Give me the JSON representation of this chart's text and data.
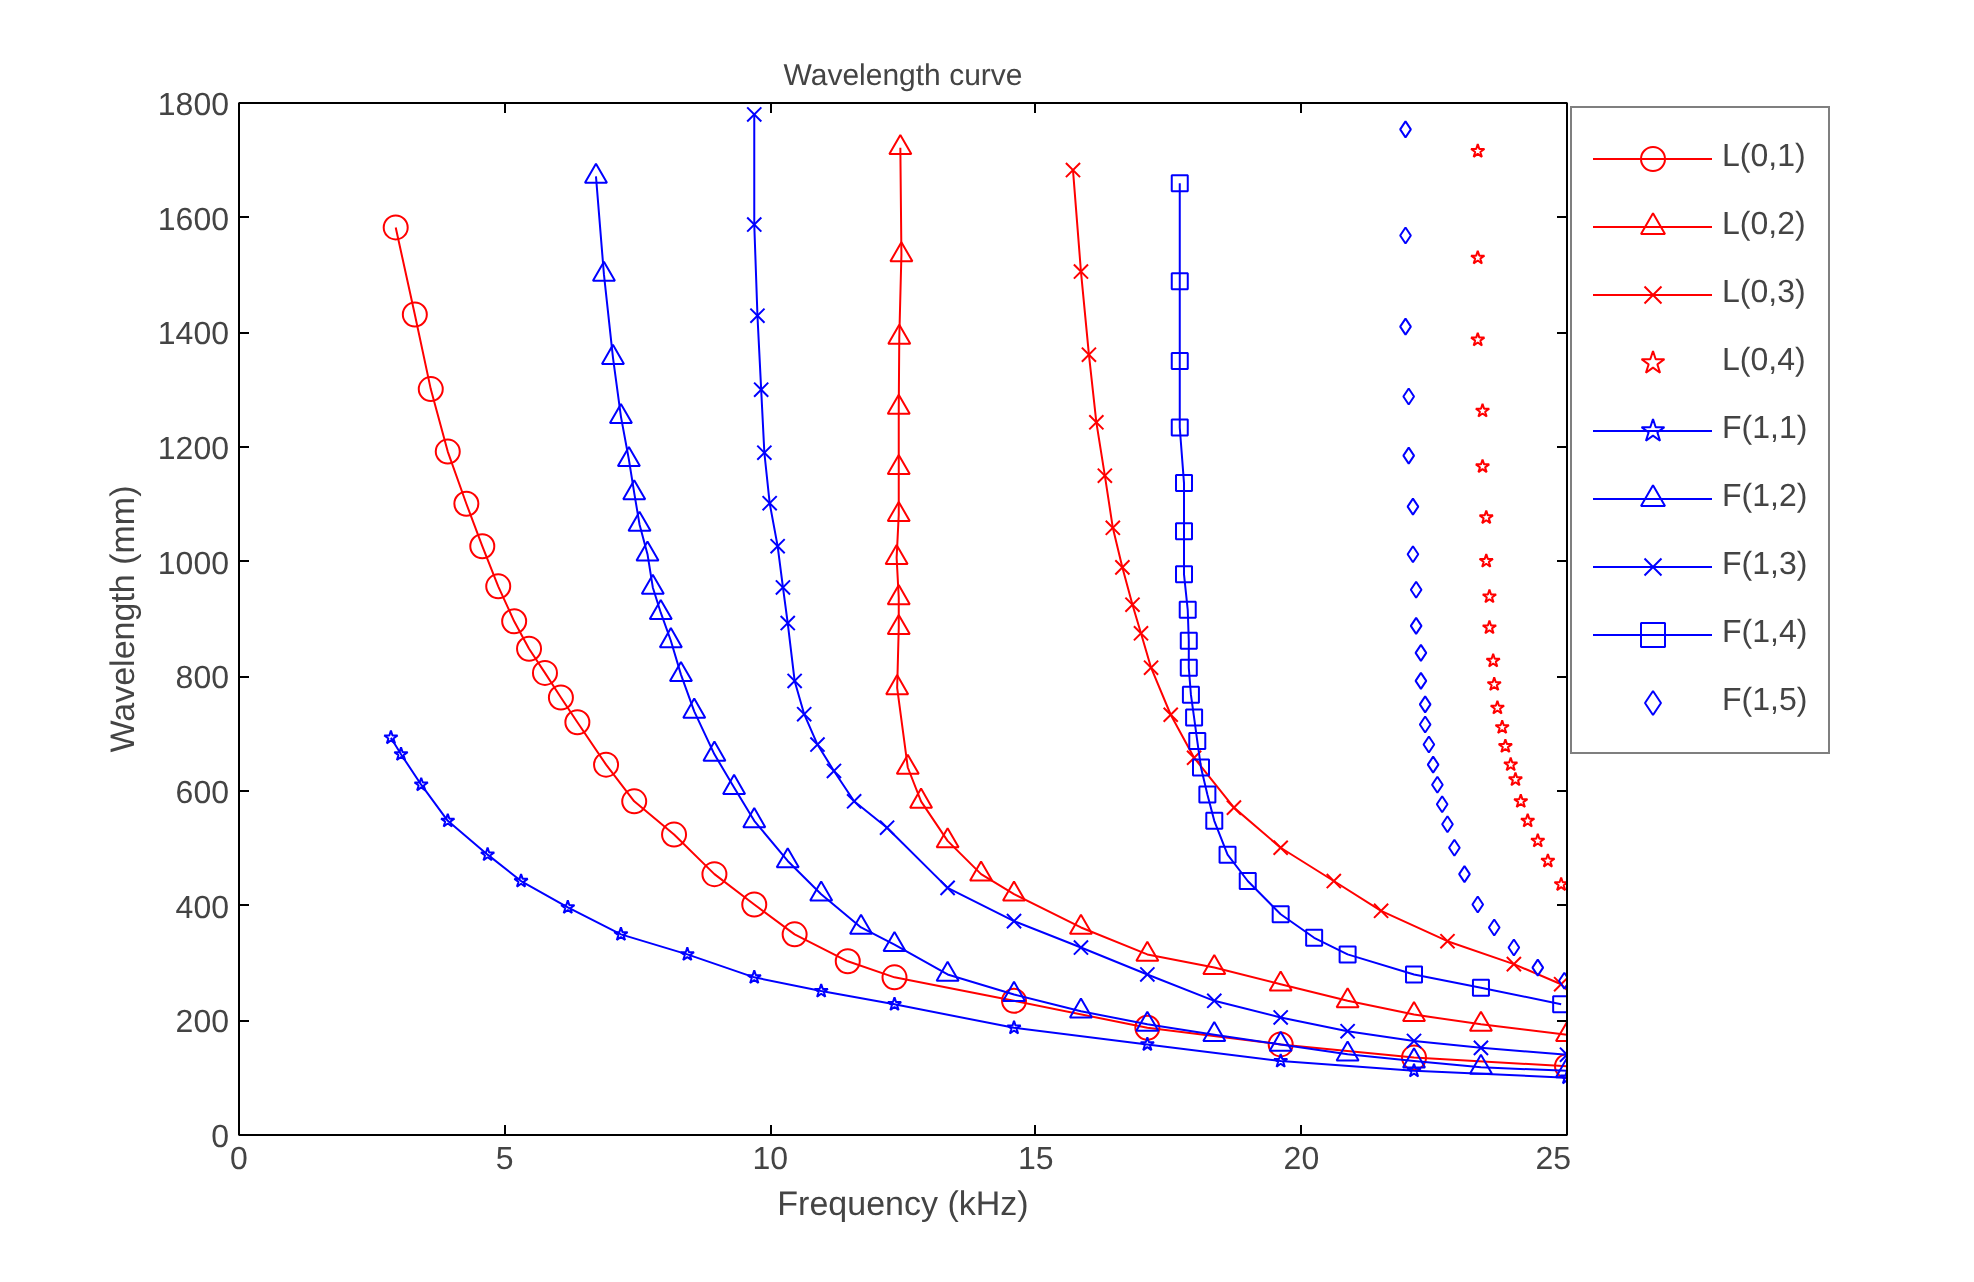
{
  "chart_data": {
    "type": "line",
    "title": "Wavelength curve",
    "xlabel": "Frequency (kHz)",
    "ylabel": "Wavelength (mm)",
    "xlim": [
      0,
      25
    ],
    "ylim": [
      0,
      1800
    ],
    "xticks": [
      0,
      5,
      10,
      15,
      20,
      25
    ],
    "yticks": [
      0,
      200,
      400,
      600,
      800,
      1000,
      1200,
      1400,
      1600,
      1800
    ],
    "grid": false,
    "legend": "top right",
    "line_style": "solid",
    "series": [
      {
        "name": "L(0,1)",
        "color": "#ff0000",
        "marker": "circle",
        "x": [
          2.95,
          3.31,
          3.61,
          3.93,
          4.28,
          4.58,
          4.88,
          5.18,
          5.46,
          5.76,
          6.06,
          6.37,
          6.91,
          7.44,
          8.19,
          8.95,
          9.7,
          10.46,
          11.46,
          12.34,
          14.59,
          17.1,
          19.61,
          22.12,
          25
        ],
        "values": [
          1583,
          1431,
          1301,
          1192,
          1101,
          1027,
          957,
          896,
          848,
          806,
          763,
          720,
          646,
          582,
          524,
          455,
          402,
          350,
          303,
          275,
          234,
          187,
          158,
          135,
          120
        ]
      },
      {
        "name": "L(0,2)",
        "color": "#ff0000",
        "marker": "triangle",
        "x": [
          12.45,
          12.47,
          12.43,
          12.42,
          12.42,
          12.42,
          12.38,
          12.42,
          12.42,
          12.39,
          12.59,
          12.84,
          13.34,
          13.97,
          14.59,
          15.85,
          17.1,
          18.36,
          19.61,
          20.87,
          22.12,
          23.38,
          25
        ],
        "values": [
          1722,
          1535,
          1391,
          1269,
          1164,
          1082,
          1007,
          937,
          885,
          780,
          641,
          582,
          513,
          455,
          420,
          362,
          315,
          292,
          263,
          234,
          210,
          193,
          175
        ]
      },
      {
        "name": "L(0,3)",
        "color": "#ff0000",
        "marker": "cross",
        "x": [
          15.7,
          15.85,
          16.0,
          16.14,
          16.3,
          16.45,
          16.63,
          16.82,
          16.98,
          17.17,
          17.54,
          17.98,
          18.73,
          19.61,
          20.61,
          21.5,
          22.75,
          24.0,
          24.89
        ],
        "values": [
          1683,
          1506,
          1361,
          1243,
          1150,
          1059,
          990,
          925,
          875,
          815,
          733,
          658,
          571,
          501,
          443,
          391,
          338,
          298,
          263
        ]
      },
      {
        "name": "L(0,4)",
        "color": "#ff0000",
        "type": "scatter",
        "marker": "star",
        "x": [
          23.32,
          23.32,
          23.32,
          23.41,
          23.41,
          23.48,
          23.48,
          23.54,
          23.54,
          23.61,
          23.63,
          23.69,
          23.78,
          23.84,
          23.94,
          24.03,
          24.13,
          24.26,
          24.45,
          24.64,
          24.89
        ],
        "values": [
          1716,
          1530,
          1387,
          1263,
          1166,
          1077,
          1001,
          939,
          885,
          827,
          786,
          745,
          711,
          678,
          646,
          620,
          582,
          548,
          513,
          478,
          437
        ]
      },
      {
        "name": "F(1,1)",
        "color": "#0000ff",
        "marker": "star",
        "x": [
          2.86,
          3.05,
          3.43,
          3.93,
          4.68,
          5.31,
          6.19,
          7.19,
          8.44,
          9.7,
          10.96,
          12.34,
          14.59,
          17.1,
          19.61,
          22.12,
          25
        ],
        "values": [
          693,
          664,
          611,
          548,
          489,
          443,
          397,
          350,
          315,
          275,
          251,
          228,
          187,
          158,
          129,
          112,
          100
        ]
      },
      {
        "name": "F(1,2)",
        "color": "#0000ff",
        "marker": "triangle",
        "x": [
          6.72,
          6.87,
          7.04,
          7.19,
          7.34,
          7.44,
          7.54,
          7.69,
          7.79,
          7.94,
          8.13,
          8.32,
          8.57,
          8.95,
          9.32,
          9.7,
          10.33,
          10.96,
          11.71,
          12.34,
          13.34,
          14.59,
          15.85,
          17.1,
          18.36,
          19.61,
          20.87,
          22.12,
          23.38,
          25
        ],
        "values": [
          1672,
          1501,
          1356,
          1253,
          1178,
          1120,
          1065,
          1013,
          955,
          911,
          862,
          803,
          739,
          664,
          606,
          548,
          478,
          420,
          362,
          332,
          280,
          245,
          216,
          193,
          175,
          158,
          141,
          129,
          118,
          112
        ]
      },
      {
        "name": "F(1,3)",
        "color": "#0000ff",
        "marker": "cross",
        "x": [
          9.7,
          9.7,
          9.76,
          9.83,
          9.89,
          9.99,
          10.14,
          10.24,
          10.33,
          10.46,
          10.64,
          10.89,
          11.2,
          11.58,
          12.2,
          13.34,
          14.59,
          15.85,
          17.1,
          18.36,
          19.61,
          20.87,
          22.12,
          23.38,
          25
        ],
        "values": [
          1780,
          1588,
          1429,
          1300,
          1190,
          1102,
          1027,
          955,
          893,
          792,
          734,
          681,
          635,
          582,
          536,
          431,
          373,
          327,
          280,
          234,
          205,
          181,
          164,
          152,
          140
        ]
      },
      {
        "name": "F(1,4)",
        "color": "#0000ff",
        "marker": "square",
        "x": [
          17.71,
          17.71,
          17.71,
          17.71,
          17.79,
          17.79,
          17.79,
          17.86,
          17.88,
          17.88,
          17.92,
          17.98,
          18.04,
          18.11,
          18.23,
          18.36,
          18.61,
          18.99,
          19.61,
          20.24,
          20.87,
          22.12,
          23.38,
          24.89
        ],
        "values": [
          1660,
          1489,
          1350,
          1234,
          1137,
          1053,
          978,
          916,
          862,
          815,
          768,
          728,
          687,
          641,
          594,
          548,
          489,
          443,
          385,
          344,
          315,
          280,
          257,
          228
        ]
      },
      {
        "name": "F(1,5)",
        "color": "#0000ff",
        "type": "scatter",
        "marker": "diamond",
        "x": [
          21.96,
          21.96,
          21.96,
          22.02,
          22.02,
          22.1,
          22.1,
          22.16,
          22.16,
          22.25,
          22.25,
          22.33,
          22.33,
          22.4,
          22.48,
          22.56,
          22.65,
          22.75,
          22.88,
          23.07,
          23.32,
          23.63,
          24.0,
          24.45,
          24.95
        ],
        "values": [
          1754,
          1569,
          1410,
          1288,
          1185,
          1096,
          1013,
          951,
          888,
          841,
          792,
          751,
          716,
          681,
          646,
          611,
          577,
          542,
          501,
          455,
          402,
          362,
          327,
          292,
          269
        ]
      }
    ]
  }
}
